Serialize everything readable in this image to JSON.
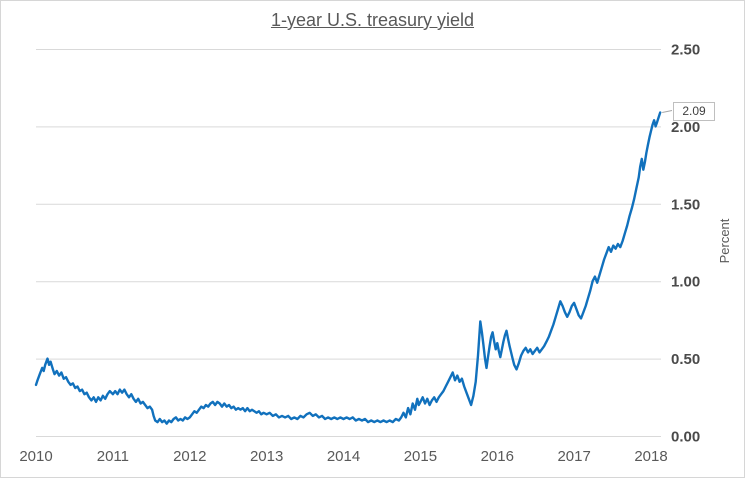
{
  "chart_data": {
    "type": "line",
    "title": "1-year U.S. treasury yield",
    "ylabel": "Percent",
    "xlabel": "",
    "x_tick_labels": [
      "2010",
      "2011",
      "2012",
      "2013",
      "2014",
      "2015",
      "2016",
      "2017",
      "2018"
    ],
    "x_ticks": [
      2010,
      2011,
      2012,
      2013,
      2014,
      2015,
      2016,
      2017,
      2018
    ],
    "y_tick_labels": [
      "0.00",
      "0.50",
      "1.00",
      "1.50",
      "2.00",
      "2.50"
    ],
    "y_ticks": [
      0,
      0.5,
      1.0,
      1.5,
      2.0,
      2.5
    ],
    "ylim": [
      0,
      2.5
    ],
    "xlim": [
      2010,
      2018.13
    ],
    "grid": "horizontal",
    "legend_position": "none",
    "annotation": {
      "label": "2.09",
      "x": 2018.12,
      "y": 2.09
    },
    "colors": {
      "line": "#1171bd",
      "grid": "#d9d9d9",
      "axis_text": "#595959",
      "title_text": "#595959",
      "callout_border": "#bfbfbf",
      "callout_text": "#404040",
      "frame_border": "#d6d6d6"
    },
    "series": [
      {
        "name": "1-year U.S. treasury yield",
        "points": [
          [
            2010.0,
            0.33
          ],
          [
            2010.02,
            0.36
          ],
          [
            2010.05,
            0.4
          ],
          [
            2010.08,
            0.44
          ],
          [
            2010.1,
            0.42
          ],
          [
            2010.12,
            0.46
          ],
          [
            2010.15,
            0.5
          ],
          [
            2010.17,
            0.46
          ],
          [
            2010.19,
            0.48
          ],
          [
            2010.22,
            0.43
          ],
          [
            2010.24,
            0.4
          ],
          [
            2010.27,
            0.42
          ],
          [
            2010.3,
            0.39
          ],
          [
            2010.33,
            0.41
          ],
          [
            2010.36,
            0.37
          ],
          [
            2010.39,
            0.38
          ],
          [
            2010.42,
            0.35
          ],
          [
            2010.45,
            0.33
          ],
          [
            2010.48,
            0.34
          ],
          [
            2010.51,
            0.31
          ],
          [
            2010.54,
            0.32
          ],
          [
            2010.57,
            0.29
          ],
          [
            2010.6,
            0.3
          ],
          [
            2010.63,
            0.27
          ],
          [
            2010.66,
            0.28
          ],
          [
            2010.69,
            0.25
          ],
          [
            2010.72,
            0.23
          ],
          [
            2010.75,
            0.25
          ],
          [
            2010.78,
            0.22
          ],
          [
            2010.81,
            0.25
          ],
          [
            2010.84,
            0.23
          ],
          [
            2010.87,
            0.26
          ],
          [
            2010.9,
            0.24
          ],
          [
            2010.93,
            0.27
          ],
          [
            2010.96,
            0.29
          ],
          [
            2011.0,
            0.27
          ],
          [
            2011.03,
            0.29
          ],
          [
            2011.06,
            0.27
          ],
          [
            2011.09,
            0.3
          ],
          [
            2011.12,
            0.28
          ],
          [
            2011.15,
            0.3
          ],
          [
            2011.18,
            0.27
          ],
          [
            2011.21,
            0.25
          ],
          [
            2011.24,
            0.27
          ],
          [
            2011.27,
            0.24
          ],
          [
            2011.3,
            0.22
          ],
          [
            2011.33,
            0.24
          ],
          [
            2011.36,
            0.21
          ],
          [
            2011.39,
            0.22
          ],
          [
            2011.42,
            0.2
          ],
          [
            2011.45,
            0.18
          ],
          [
            2011.48,
            0.19
          ],
          [
            2011.51,
            0.17
          ],
          [
            2011.53,
            0.13
          ],
          [
            2011.55,
            0.1
          ],
          [
            2011.58,
            0.09
          ],
          [
            2011.61,
            0.11
          ],
          [
            2011.64,
            0.09
          ],
          [
            2011.67,
            0.1
          ],
          [
            2011.7,
            0.08
          ],
          [
            2011.73,
            0.1
          ],
          [
            2011.76,
            0.09
          ],
          [
            2011.79,
            0.11
          ],
          [
            2011.82,
            0.12
          ],
          [
            2011.85,
            0.1
          ],
          [
            2011.88,
            0.11
          ],
          [
            2011.91,
            0.1
          ],
          [
            2011.94,
            0.12
          ],
          [
            2011.97,
            0.11
          ],
          [
            2012.0,
            0.12
          ],
          [
            2012.03,
            0.14
          ],
          [
            2012.06,
            0.16
          ],
          [
            2012.09,
            0.15
          ],
          [
            2012.12,
            0.17
          ],
          [
            2012.15,
            0.19
          ],
          [
            2012.18,
            0.18
          ],
          [
            2012.21,
            0.2
          ],
          [
            2012.24,
            0.19
          ],
          [
            2012.27,
            0.21
          ],
          [
            2012.3,
            0.22
          ],
          [
            2012.33,
            0.2
          ],
          [
            2012.36,
            0.22
          ],
          [
            2012.39,
            0.21
          ],
          [
            2012.42,
            0.19
          ],
          [
            2012.45,
            0.21
          ],
          [
            2012.48,
            0.19
          ],
          [
            2012.51,
            0.2
          ],
          [
            2012.54,
            0.18
          ],
          [
            2012.57,
            0.19
          ],
          [
            2012.6,
            0.17
          ],
          [
            2012.63,
            0.18
          ],
          [
            2012.66,
            0.17
          ],
          [
            2012.69,
            0.18
          ],
          [
            2012.72,
            0.16
          ],
          [
            2012.75,
            0.18
          ],
          [
            2012.78,
            0.16
          ],
          [
            2012.81,
            0.17
          ],
          [
            2012.84,
            0.16
          ],
          [
            2012.87,
            0.15
          ],
          [
            2012.9,
            0.16
          ],
          [
            2012.93,
            0.14
          ],
          [
            2012.96,
            0.15
          ],
          [
            2013.0,
            0.14
          ],
          [
            2013.04,
            0.15
          ],
          [
            2013.08,
            0.13
          ],
          [
            2013.12,
            0.14
          ],
          [
            2013.16,
            0.12
          ],
          [
            2013.2,
            0.13
          ],
          [
            2013.24,
            0.12
          ],
          [
            2013.28,
            0.13
          ],
          [
            2013.32,
            0.11
          ],
          [
            2013.36,
            0.12
          ],
          [
            2013.4,
            0.11
          ],
          [
            2013.44,
            0.13
          ],
          [
            2013.48,
            0.12
          ],
          [
            2013.52,
            0.14
          ],
          [
            2013.56,
            0.15
          ],
          [
            2013.6,
            0.13
          ],
          [
            2013.64,
            0.14
          ],
          [
            2013.68,
            0.12
          ],
          [
            2013.72,
            0.13
          ],
          [
            2013.76,
            0.11
          ],
          [
            2013.8,
            0.12
          ],
          [
            2013.84,
            0.11
          ],
          [
            2013.88,
            0.12
          ],
          [
            2013.92,
            0.11
          ],
          [
            2013.96,
            0.12
          ],
          [
            2014.0,
            0.11
          ],
          [
            2014.04,
            0.12
          ],
          [
            2014.08,
            0.11
          ],
          [
            2014.12,
            0.12
          ],
          [
            2014.16,
            0.1
          ],
          [
            2014.2,
            0.11
          ],
          [
            2014.24,
            0.1
          ],
          [
            2014.28,
            0.11
          ],
          [
            2014.32,
            0.09
          ],
          [
            2014.36,
            0.1
          ],
          [
            2014.4,
            0.09
          ],
          [
            2014.44,
            0.1
          ],
          [
            2014.48,
            0.09
          ],
          [
            2014.52,
            0.1
          ],
          [
            2014.56,
            0.09
          ],
          [
            2014.6,
            0.1
          ],
          [
            2014.64,
            0.09
          ],
          [
            2014.68,
            0.11
          ],
          [
            2014.72,
            0.1
          ],
          [
            2014.75,
            0.12
          ],
          [
            2014.78,
            0.15
          ],
          [
            2014.81,
            0.12
          ],
          [
            2014.84,
            0.18
          ],
          [
            2014.87,
            0.14
          ],
          [
            2014.9,
            0.21
          ],
          [
            2014.93,
            0.17
          ],
          [
            2014.96,
            0.24
          ],
          [
            2014.98,
            0.2
          ],
          [
            2015.0,
            0.22
          ],
          [
            2015.03,
            0.25
          ],
          [
            2015.06,
            0.21
          ],
          [
            2015.09,
            0.24
          ],
          [
            2015.12,
            0.2
          ],
          [
            2015.15,
            0.23
          ],
          [
            2015.18,
            0.25
          ],
          [
            2015.21,
            0.22
          ],
          [
            2015.24,
            0.25
          ],
          [
            2015.27,
            0.27
          ],
          [
            2015.3,
            0.29
          ],
          [
            2015.33,
            0.32
          ],
          [
            2015.36,
            0.35
          ],
          [
            2015.39,
            0.38
          ],
          [
            2015.42,
            0.41
          ],
          [
            2015.45,
            0.36
          ],
          [
            2015.48,
            0.39
          ],
          [
            2015.51,
            0.35
          ],
          [
            2015.54,
            0.37
          ],
          [
            2015.57,
            0.32
          ],
          [
            2015.6,
            0.28
          ],
          [
            2015.63,
            0.24
          ],
          [
            2015.66,
            0.2
          ],
          [
            2015.69,
            0.26
          ],
          [
            2015.72,
            0.35
          ],
          [
            2015.75,
            0.52
          ],
          [
            2015.78,
            0.74
          ],
          [
            2015.8,
            0.67
          ],
          [
            2015.82,
            0.59
          ],
          [
            2015.84,
            0.5
          ],
          [
            2015.86,
            0.44
          ],
          [
            2015.88,
            0.51
          ],
          [
            2015.9,
            0.58
          ],
          [
            2015.92,
            0.64
          ],
          [
            2015.94,
            0.67
          ],
          [
            2015.96,
            0.61
          ],
          [
            2015.98,
            0.56
          ],
          [
            2016.0,
            0.6
          ],
          [
            2016.02,
            0.55
          ],
          [
            2016.04,
            0.51
          ],
          [
            2016.06,
            0.56
          ],
          [
            2016.08,
            0.61
          ],
          [
            2016.1,
            0.65
          ],
          [
            2016.12,
            0.68
          ],
          [
            2016.14,
            0.63
          ],
          [
            2016.16,
            0.58
          ],
          [
            2016.18,
            0.54
          ],
          [
            2016.2,
            0.5
          ],
          [
            2016.22,
            0.46
          ],
          [
            2016.25,
            0.43
          ],
          [
            2016.28,
            0.47
          ],
          [
            2016.31,
            0.52
          ],
          [
            2016.34,
            0.55
          ],
          [
            2016.37,
            0.57
          ],
          [
            2016.4,
            0.54
          ],
          [
            2016.43,
            0.56
          ],
          [
            2016.46,
            0.53
          ],
          [
            2016.49,
            0.55
          ],
          [
            2016.52,
            0.57
          ],
          [
            2016.55,
            0.54
          ],
          [
            2016.58,
            0.56
          ],
          [
            2016.61,
            0.58
          ],
          [
            2016.64,
            0.61
          ],
          [
            2016.67,
            0.64
          ],
          [
            2016.7,
            0.68
          ],
          [
            2016.73,
            0.72
          ],
          [
            2016.76,
            0.77
          ],
          [
            2016.79,
            0.82
          ],
          [
            2016.82,
            0.87
          ],
          [
            2016.85,
            0.84
          ],
          [
            2016.88,
            0.8
          ],
          [
            2016.91,
            0.77
          ],
          [
            2016.94,
            0.8
          ],
          [
            2016.97,
            0.84
          ],
          [
            2017.0,
            0.86
          ],
          [
            2017.03,
            0.82
          ],
          [
            2017.06,
            0.78
          ],
          [
            2017.09,
            0.76
          ],
          [
            2017.12,
            0.8
          ],
          [
            2017.15,
            0.84
          ],
          [
            2017.18,
            0.89
          ],
          [
            2017.21,
            0.94
          ],
          [
            2017.24,
            1.0
          ],
          [
            2017.27,
            1.03
          ],
          [
            2017.3,
            0.99
          ],
          [
            2017.33,
            1.04
          ],
          [
            2017.36,
            1.09
          ],
          [
            2017.39,
            1.14
          ],
          [
            2017.42,
            1.18
          ],
          [
            2017.45,
            1.22
          ],
          [
            2017.48,
            1.19
          ],
          [
            2017.51,
            1.23
          ],
          [
            2017.54,
            1.21
          ],
          [
            2017.57,
            1.24
          ],
          [
            2017.6,
            1.22
          ],
          [
            2017.63,
            1.26
          ],
          [
            2017.66,
            1.31
          ],
          [
            2017.69,
            1.36
          ],
          [
            2017.72,
            1.42
          ],
          [
            2017.75,
            1.47
          ],
          [
            2017.78,
            1.53
          ],
          [
            2017.81,
            1.6
          ],
          [
            2017.84,
            1.67
          ],
          [
            2017.86,
            1.74
          ],
          [
            2017.88,
            1.79
          ],
          [
            2017.9,
            1.72
          ],
          [
            2017.92,
            1.77
          ],
          [
            2017.94,
            1.83
          ],
          [
            2017.96,
            1.88
          ],
          [
            2017.98,
            1.93
          ],
          [
            2018.0,
            1.97
          ],
          [
            2018.02,
            2.01
          ],
          [
            2018.04,
            2.04
          ],
          [
            2018.06,
            2.0
          ],
          [
            2018.08,
            2.03
          ],
          [
            2018.1,
            2.06
          ],
          [
            2018.12,
            2.09
          ]
        ]
      }
    ]
  }
}
